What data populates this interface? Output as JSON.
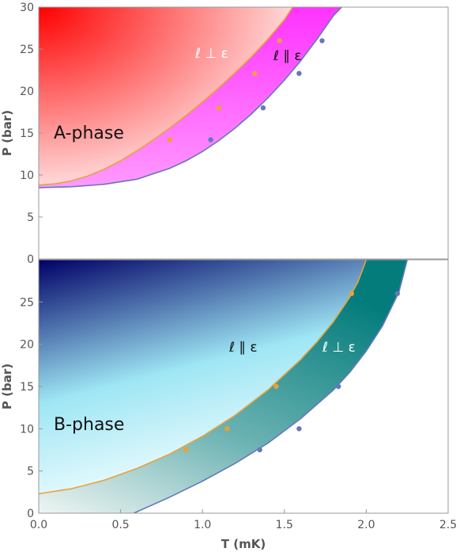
{
  "chart_data": [
    {
      "type": "area",
      "phase_label": "A-phase",
      "xlabel": "",
      "ylabel": "P (bar)",
      "xlim": [
        0,
        2.5
      ],
      "ylim": [
        0,
        30
      ],
      "yticks": [
        0,
        5,
        10,
        15,
        20,
        25,
        30
      ],
      "grid": false,
      "series": [
        {
          "name": "ℓ ⊥ ε",
          "color": "#e8a23a",
          "curve": {
            "x": [
              0.0,
              0.1,
              0.2,
              0.3,
              0.4,
              0.5,
              0.6,
              0.7,
              0.8,
              0.9,
              1.0,
              1.1,
              1.2,
              1.3,
              1.4,
              1.5,
              1.55
            ],
            "y": [
              8.8,
              8.95,
              9.3,
              9.9,
              10.7,
              11.7,
              12.9,
              14.2,
              15.6,
              17.1,
              18.7,
              20.4,
              22.2,
              24.1,
              26.2,
              28.5,
              30.0
            ]
          },
          "points": {
            "x": [
              0.8,
              1.1,
              1.32,
              1.47
            ],
            "y": [
              14.2,
              18.0,
              22.1,
              26.0
            ]
          }
        },
        {
          "name": "ℓ ∥ ε",
          "color": "#6677bb",
          "curve": {
            "x": [
              0.0,
              0.2,
              0.4,
              0.6,
              0.8,
              0.9,
              1.0,
              1.1,
              1.2,
              1.3,
              1.4,
              1.5,
              1.6,
              1.7,
              1.8,
              1.85
            ],
            "y": [
              8.5,
              8.6,
              8.9,
              9.5,
              10.8,
              11.7,
              12.8,
              14.1,
              15.6,
              17.3,
              19.2,
              21.3,
              23.6,
              26.2,
              29.0,
              30.0
            ]
          },
          "points": {
            "x": [
              1.05,
              1.37,
              1.59,
              1.73
            ],
            "y": [
              14.2,
              18.0,
              22.1,
              26.0
            ]
          }
        }
      ],
      "annotations": [
        "ℓ ⊥ ε",
        "ℓ ∥ ε"
      ],
      "colors": {
        "a_phase_dark": "#ff0000",
        "a_phase_light": "#ffe4e4",
        "magenta_region": "#ff33ff"
      }
    },
    {
      "type": "area",
      "phase_label": "B-phase",
      "xlabel": "T (mK)",
      "ylabel": "P (bar)",
      "xlim": [
        0,
        2.5
      ],
      "ylim": [
        0,
        30
      ],
      "xticks": [
        "0.0",
        "0.5",
        "1.0",
        "1.5",
        "2.0",
        "2.5"
      ],
      "yticks": [
        0,
        5,
        10,
        15,
        20,
        25
      ],
      "grid": false,
      "series": [
        {
          "name": "ℓ ∥ ε",
          "color": "#e8a23a",
          "curve": {
            "x": [
              0.0,
              0.2,
              0.4,
              0.6,
              0.8,
              1.0,
              1.2,
              1.4,
              1.6,
              1.7,
              1.8,
              1.9,
              1.95,
              2.0
            ],
            "y": [
              2.3,
              2.9,
              3.9,
              5.3,
              7.0,
              9.1,
              11.6,
              14.6,
              18.2,
              20.3,
              22.7,
              25.6,
              27.4,
              30.0
            ]
          },
          "points": {
            "x": [
              0.9,
              1.15,
              1.45,
              1.91
            ],
            "y": [
              7.5,
              10.0,
              15.0,
              26.0
            ]
          }
        },
        {
          "name": "ℓ ⊥ ε",
          "color": "#6677bb",
          "curve": {
            "x": [
              0.58,
              0.8,
              1.0,
              1.2,
              1.4,
              1.6,
              1.8,
              1.9,
              2.0,
              2.1,
              2.2,
              2.25
            ],
            "y": [
              0.0,
              1.9,
              3.8,
              5.9,
              8.3,
              11.2,
              14.6,
              16.7,
              19.2,
              22.2,
              26.2,
              30.0
            ]
          },
          "points": {
            "x": [
              1.35,
              1.59,
              1.83,
              2.19
            ],
            "y": [
              7.5,
              10.0,
              15.0,
              26.0
            ]
          }
        }
      ],
      "annotations": [
        "ℓ ∥ ε",
        "ℓ ⊥ ε"
      ],
      "colors": {
        "b_phase_dark": "#000066",
        "b_phase_light": "#e6fbff",
        "teal_region": "#047c7c"
      }
    }
  ]
}
